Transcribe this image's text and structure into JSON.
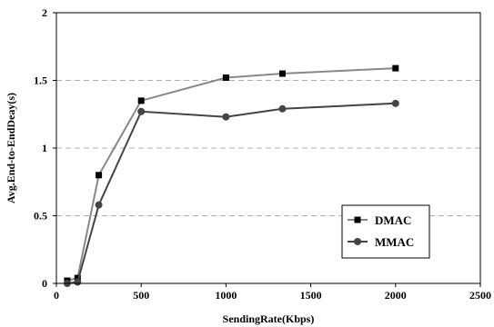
{
  "chart_data": {
    "type": "line",
    "title": "",
    "xlabel": "SendingRate(Kbps)",
    "ylabel": "Avg.End-to-EndDeay(s)",
    "xlim": [
      0,
      2500
    ],
    "ylim": [
      0,
      2
    ],
    "xticks": [
      0,
      500,
      1000,
      1500,
      2000,
      2500
    ],
    "yticks": [
      0,
      0.5,
      1,
      1.5,
      2
    ],
    "xtick_labels": [
      "0",
      "500",
      "1000",
      "1500",
      "2000",
      "2500"
    ],
    "ytick_labels": [
      "0",
      "0.5",
      "1",
      "1.5",
      "2"
    ],
    "grid": "horizontal dashed",
    "legend_position": "lower-right",
    "series": [
      {
        "name": "DMAC",
        "marker": "square",
        "color": "#888888",
        "x": [
          64,
          125,
          250,
          500,
          1000,
          1333,
          2000
        ],
        "y": [
          0.02,
          0.04,
          0.8,
          1.35,
          1.52,
          1.55,
          1.59
        ]
      },
      {
        "name": "MMAC",
        "marker": "circle",
        "color": "#444444",
        "x": [
          64,
          125,
          250,
          500,
          1000,
          1333,
          2000
        ],
        "y": [
          0.0,
          0.01,
          0.58,
          1.27,
          1.23,
          1.29,
          1.33
        ]
      }
    ]
  }
}
